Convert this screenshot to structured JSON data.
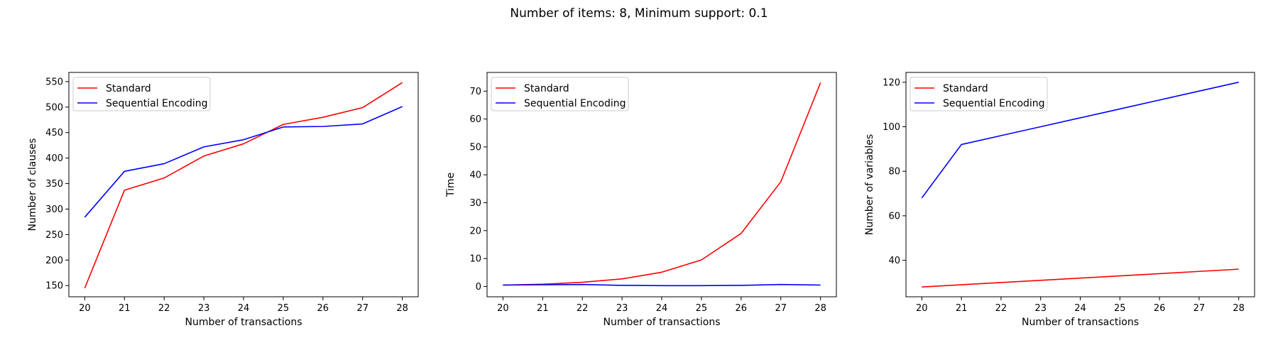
{
  "suptitle": "Number of items: 8, Minimum support: 0.1",
  "colors": {
    "Standard": "#ff0000",
    "Sequential Encoding": "#0000ff"
  },
  "chart_data": [
    {
      "type": "line",
      "xlabel": "Number of transactions",
      "ylabel": "Number of clauses",
      "x": [
        20,
        21,
        22,
        23,
        24,
        25,
        26,
        27,
        28
      ],
      "xlim": [
        19.6,
        28.4
      ],
      "ylim": [
        128,
        568
      ],
      "yticks": [
        150,
        200,
        250,
        300,
        350,
        400,
        450,
        500,
        550
      ],
      "legend": "upper left",
      "series": [
        {
          "name": "Standard",
          "color": "#ff0000",
          "values": [
            145,
            337,
            361,
            404,
            428,
            466,
            480,
            499,
            548
          ]
        },
        {
          "name": "Sequential Encoding",
          "color": "#0000ff",
          "values": [
            284,
            374,
            389,
            422,
            436,
            461,
            462,
            467,
            501
          ]
        }
      ]
    },
    {
      "type": "line",
      "xlabel": "Number of transactions",
      "ylabel": "Time",
      "x": [
        20,
        21,
        22,
        23,
        24,
        25,
        26,
        27,
        28
      ],
      "xlim": [
        19.6,
        28.4
      ],
      "ylim": [
        -3.7,
        76.7
      ],
      "yticks": [
        0,
        10,
        20,
        30,
        40,
        50,
        60,
        70
      ],
      "legend": "upper left",
      "series": [
        {
          "name": "Standard",
          "color": "#ff0000",
          "values": [
            0.5,
            0.8,
            1.5,
            2.7,
            5.1,
            9.5,
            19.0,
            37.5,
            73.0
          ]
        },
        {
          "name": "Sequential Encoding",
          "color": "#0000ff",
          "values": [
            0.5,
            0.6,
            0.7,
            0.4,
            0.3,
            0.3,
            0.4,
            0.7,
            0.5
          ]
        }
      ]
    },
    {
      "type": "line",
      "xlabel": "Number of transactions",
      "ylabel": "Number of variables",
      "x": [
        20,
        21,
        22,
        23,
        24,
        25,
        26,
        27,
        28
      ],
      "xlim": [
        19.6,
        28.4
      ],
      "ylim": [
        23.6,
        124.4
      ],
      "yticks": [
        40,
        60,
        80,
        100,
        120
      ],
      "legend": "upper left",
      "series": [
        {
          "name": "Standard",
          "color": "#ff0000",
          "values": [
            28,
            29,
            30,
            31,
            32,
            33,
            34,
            35,
            36
          ]
        },
        {
          "name": "Sequential Encoding",
          "color": "#0000ff",
          "values": [
            68,
            92,
            96,
            100,
            104,
            108,
            112,
            116,
            120
          ]
        }
      ]
    }
  ]
}
